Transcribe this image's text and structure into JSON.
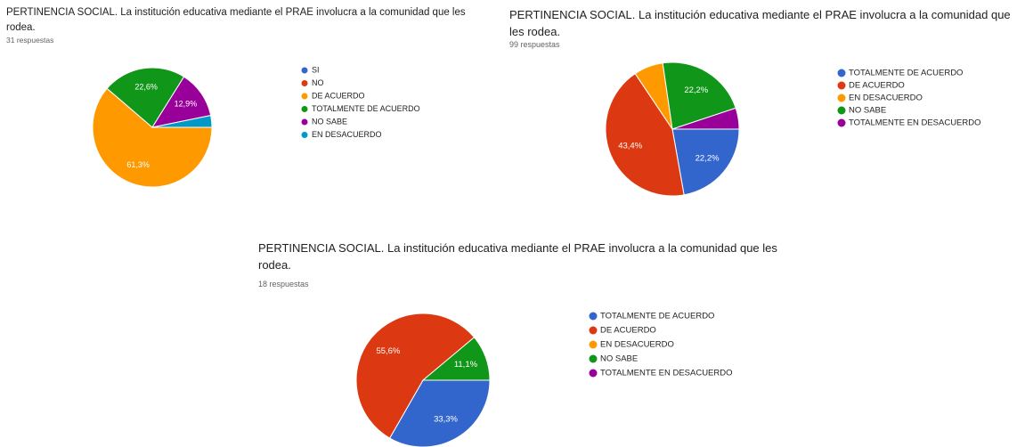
{
  "chart_data": [
    {
      "type": "pie",
      "title": "PERTINENCIA SOCIAL. La institución educativa mediante el PRAE involucra a la comunidad que les rodea.",
      "subtitle": "31 respuestas",
      "categories": [
        "SI",
        "NO",
        "DE ACUERDO",
        "TOTALMENTE DE ACUERDO",
        "NO SABE",
        "EN DESACUERDO"
      ],
      "values": [
        0,
        0,
        61.3,
        22.6,
        12.9,
        3.2
      ],
      "value_labels": [
        null,
        null,
        "61,3%",
        "22,6%",
        "12,9%",
        null
      ],
      "colors": [
        "#3366cc",
        "#dc3912",
        "#ff9900",
        "#109618",
        "#990099",
        "#0099c6"
      ]
    },
    {
      "type": "pie",
      "title": "PERTINENCIA SOCIAL. La institución educativa mediante el PRAE involucra a la comunidad que les rodea.",
      "subtitle": "99 respuestas",
      "categories": [
        "TOTALMENTE DE ACUERDO",
        "DE ACUERDO",
        "EN DESACUERDO",
        "NO SABE",
        "TOTALMENTE EN DESACUERDO"
      ],
      "values": [
        22.2,
        43.4,
        7.1,
        22.2,
        5.1
      ],
      "value_labels": [
        "22,2%",
        "43,4%",
        null,
        "22,2%",
        null
      ],
      "colors": [
        "#3366cc",
        "#dc3912",
        "#ff9900",
        "#109618",
        "#990099"
      ]
    },
    {
      "type": "pie",
      "title": "PERTINENCIA SOCIAL. La institución educativa mediante el PRAE involucra a la comunidad que les rodea.",
      "subtitle": "18 respuestas",
      "categories": [
        "TOTALMENTE DE ACUERDO",
        "DE ACUERDO",
        "EN DESACUERDO",
        "NO SABE",
        "TOTALMENTE EN DESACUERDO"
      ],
      "values": [
        33.3,
        55.6,
        0,
        11.1,
        0
      ],
      "value_labels": [
        "33,3%",
        "55,6%",
        null,
        "11,1%",
        null
      ],
      "colors": [
        "#3366cc",
        "#dc3912",
        "#ff9900",
        "#109618",
        "#990099"
      ]
    }
  ]
}
